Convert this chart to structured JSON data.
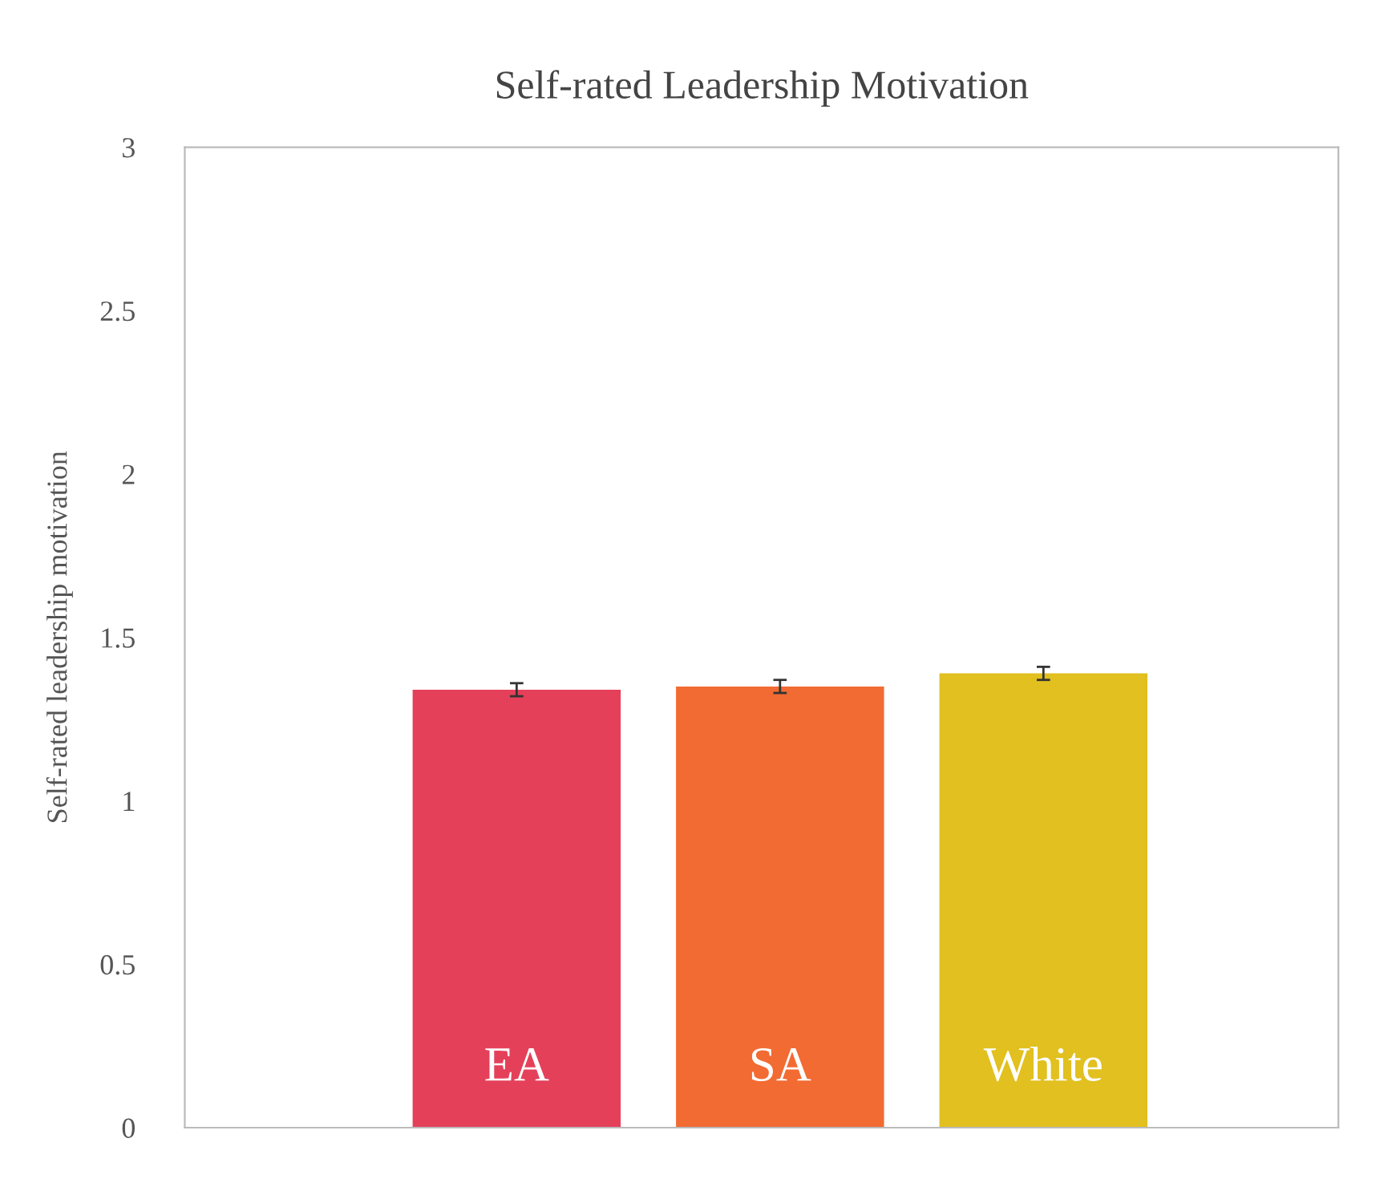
{
  "chart_data": {
    "type": "bar",
    "title": "Self-rated Leadership Motivation",
    "ylabel": "Self-rated leadership motivation",
    "categories": [
      "EA",
      "SA",
      "White"
    ],
    "values": [
      1.34,
      1.35,
      1.39
    ],
    "errors": [
      0.02,
      0.02,
      0.02
    ],
    "colors": [
      "#e5405a",
      "#f26b33",
      "#e1c020"
    ],
    "ylim": [
      0,
      3
    ],
    "yticks": [
      0,
      0.5,
      1,
      1.5,
      2,
      2.5,
      3
    ],
    "grid": false,
    "legend": false
  }
}
